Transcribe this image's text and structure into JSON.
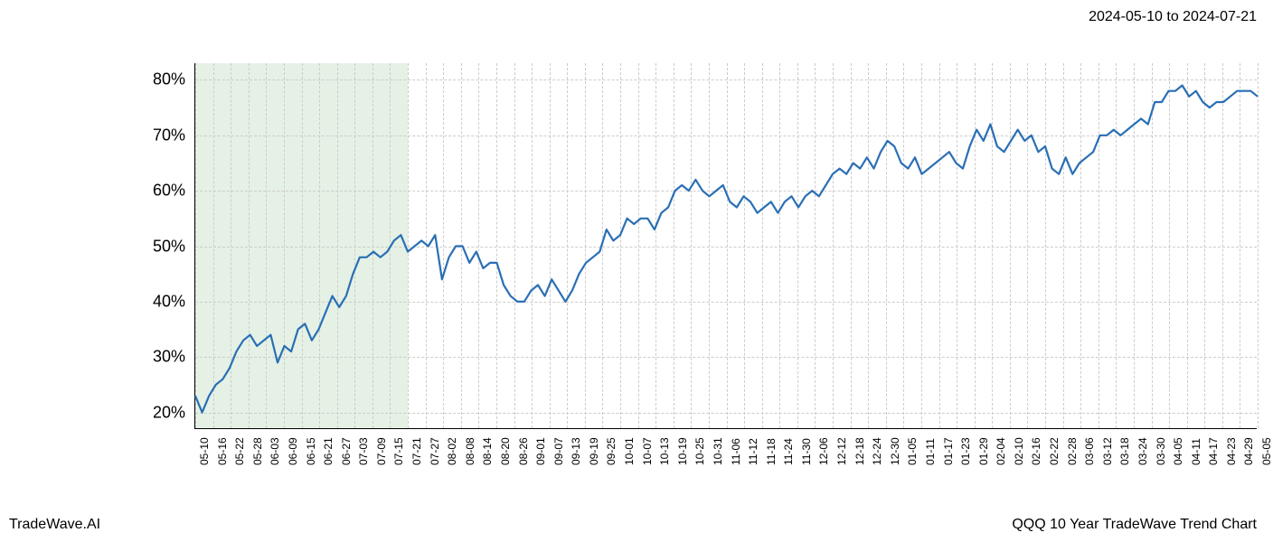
{
  "header": {
    "date_range": "2024-05-10 to 2024-07-21"
  },
  "footer": {
    "left": "TradeWave.AI",
    "right": "QQQ 10 Year TradeWave Trend Chart"
  },
  "chart": {
    "type": "line",
    "background_color": "#ffffff",
    "grid_color": "#cccccc",
    "axis_color": "#000000",
    "series_color": "#2a6fb5",
    "line_width": 2.2,
    "highlight_color": "#d4e8d4",
    "highlight_opacity": 0.6,
    "highlight_start_index": 0,
    "highlight_end_index": 12,
    "ylim": [
      17,
      83
    ],
    "yticks": [
      20,
      30,
      40,
      50,
      60,
      70,
      80
    ],
    "ytick_suffix": "%",
    "y_fontsize": 18,
    "x_fontsize": 12,
    "x_labels": [
      "05-10",
      "05-16",
      "05-22",
      "05-28",
      "06-03",
      "06-09",
      "06-15",
      "06-21",
      "06-27",
      "07-03",
      "07-09",
      "07-15",
      "07-21",
      "07-27",
      "08-02",
      "08-08",
      "08-14",
      "08-20",
      "08-26",
      "09-01",
      "09-07",
      "09-13",
      "09-19",
      "09-25",
      "10-01",
      "10-07",
      "10-13",
      "10-19",
      "10-25",
      "10-31",
      "11-06",
      "11-12",
      "11-18",
      "11-24",
      "11-30",
      "12-06",
      "12-12",
      "12-18",
      "12-24",
      "12-30",
      "01-05",
      "01-11",
      "01-17",
      "01-23",
      "01-29",
      "02-04",
      "02-10",
      "02-16",
      "02-22",
      "02-28",
      "03-06",
      "03-12",
      "03-18",
      "03-24",
      "03-30",
      "04-05",
      "04-11",
      "04-17",
      "04-23",
      "04-29",
      "05-05"
    ],
    "values": [
      23,
      20,
      23,
      25,
      26,
      28,
      31,
      33,
      34,
      32,
      33,
      34,
      29,
      32,
      31,
      35,
      36,
      33,
      35,
      38,
      41,
      39,
      41,
      45,
      48,
      48,
      49,
      48,
      49,
      51,
      52,
      49,
      50,
      51,
      50,
      52,
      44,
      48,
      50,
      50,
      47,
      49,
      46,
      47,
      47,
      43,
      41,
      40,
      40,
      42,
      43,
      41,
      44,
      42,
      40,
      42,
      45,
      47,
      48,
      49,
      53,
      51,
      52,
      55,
      54,
      55,
      55,
      53,
      56,
      57,
      60,
      61,
      60,
      62,
      60,
      59,
      60,
      61,
      58,
      57,
      59,
      58,
      56,
      57,
      58,
      56,
      58,
      59,
      57,
      59,
      60,
      59,
      61,
      63,
      64,
      63,
      65,
      64,
      66,
      64,
      67,
      69,
      68,
      65,
      64,
      66,
      63,
      64,
      65,
      66,
      67,
      65,
      64,
      68,
      71,
      69,
      72,
      68,
      67,
      69,
      71,
      69,
      70,
      67,
      68,
      64,
      63,
      66,
      63,
      65,
      66,
      67,
      70,
      70,
      71,
      70,
      71,
      72,
      73,
      72,
      76,
      76,
      78,
      78,
      79,
      77,
      78,
      76,
      75,
      76,
      76,
      77,
      78,
      78,
      78,
      77
    ]
  }
}
